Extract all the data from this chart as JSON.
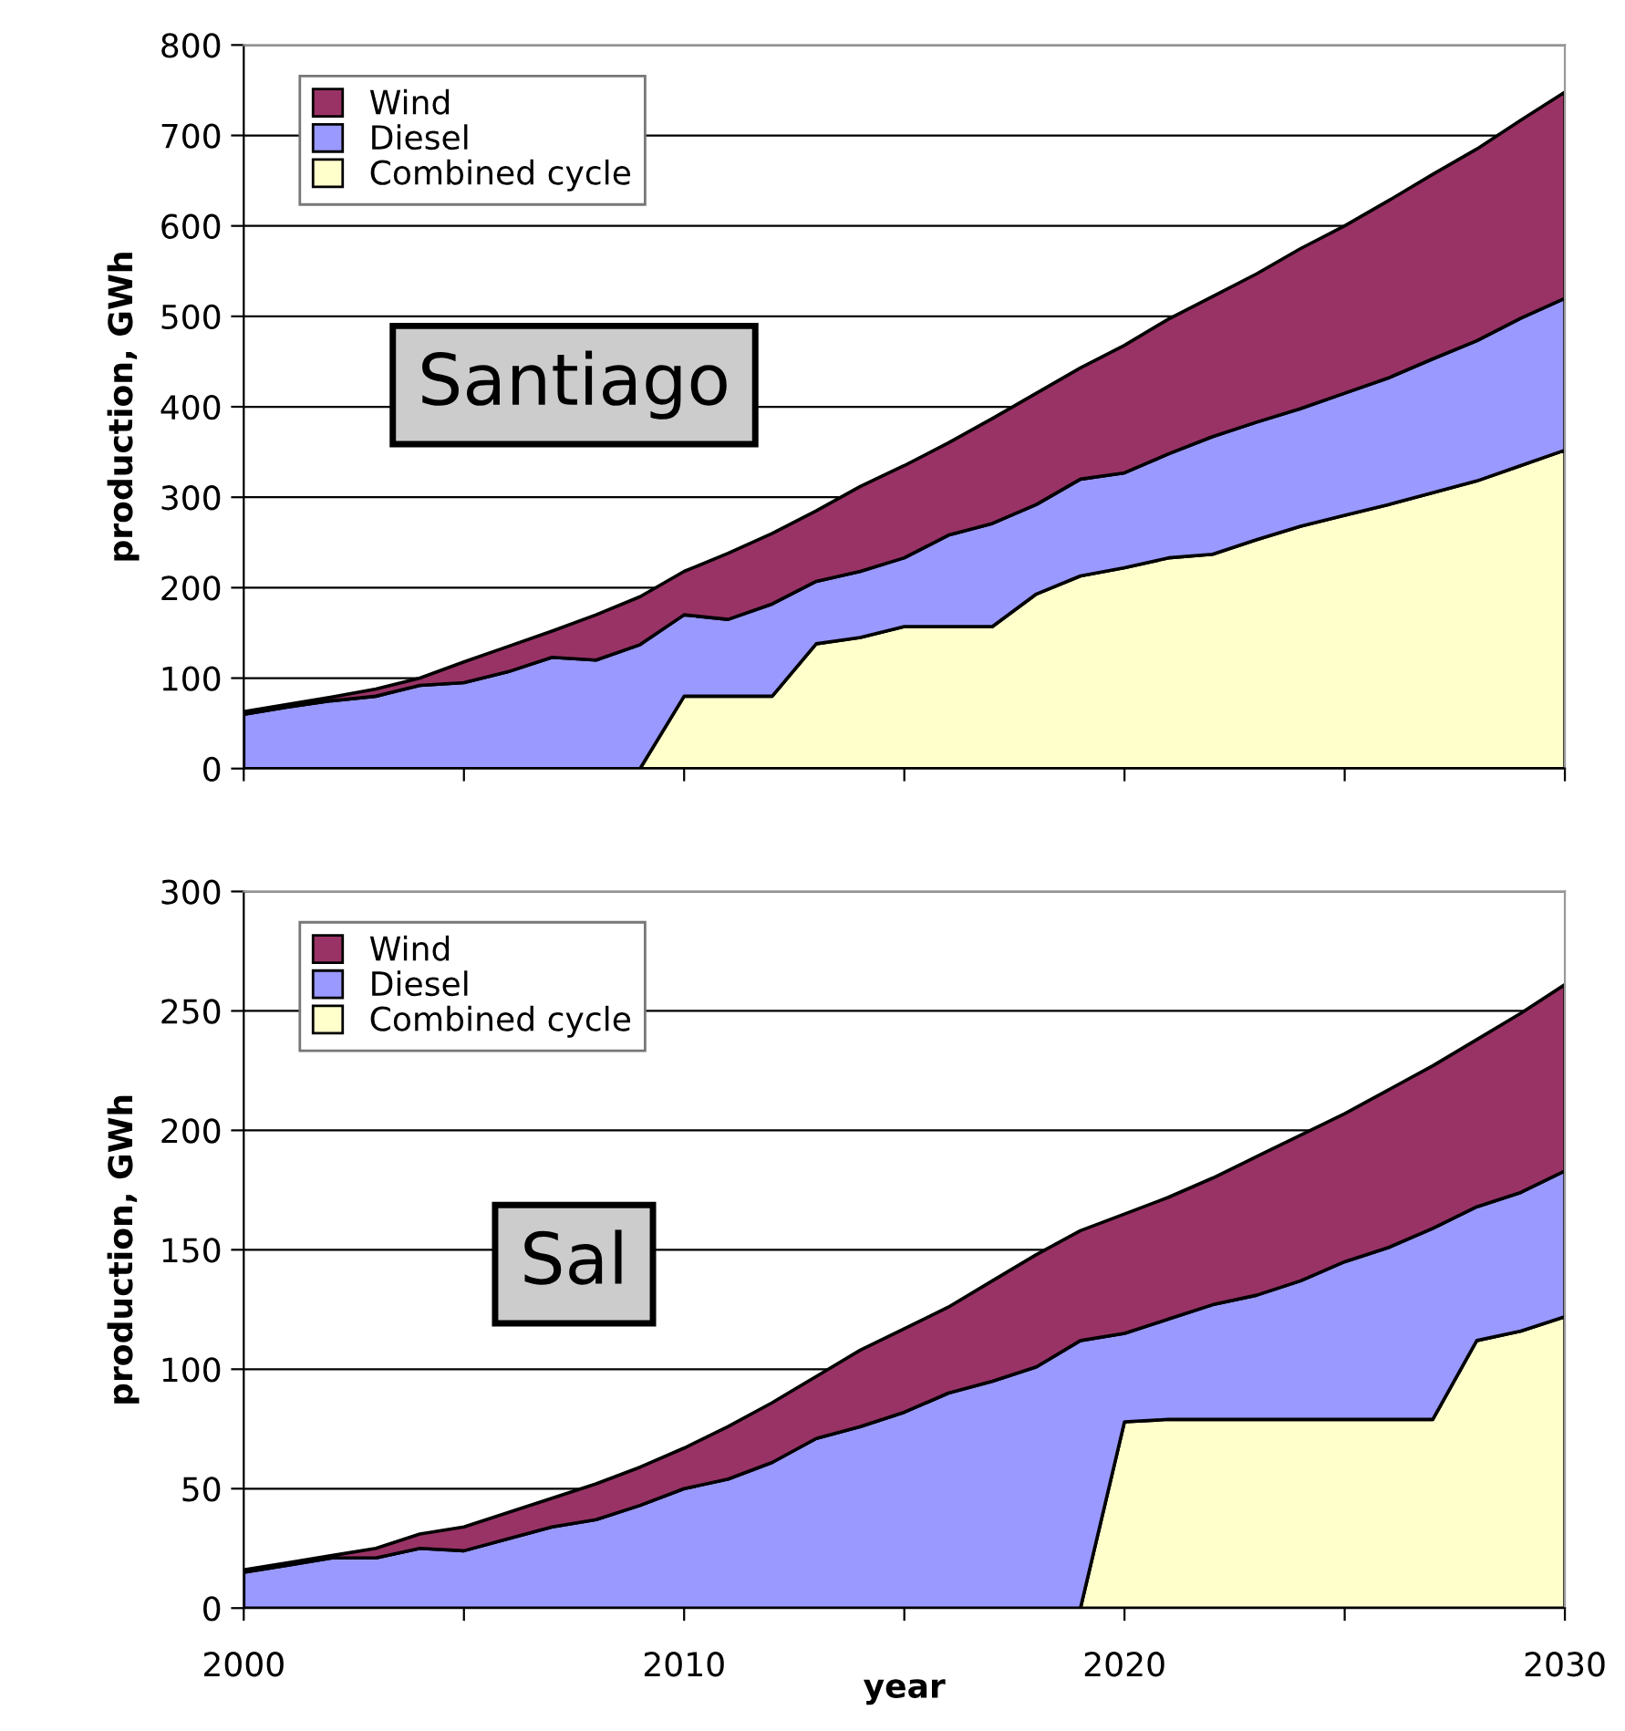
{
  "chart_data": [
    {
      "type": "area",
      "stacked": true,
      "ylabel": "production, GWh",
      "x": [
        2000,
        2001,
        2002,
        2003,
        2004,
        2005,
        2006,
        2007,
        2008,
        2009,
        2010,
        2011,
        2012,
        2013,
        2014,
        2015,
        2016,
        2017,
        2018,
        2019,
        2020,
        2021,
        2022,
        2023,
        2024,
        2025,
        2026,
        2027,
        2028,
        2029,
        2030
      ],
      "series": [
        {
          "name": "Combined cycle",
          "color": "#ffffcc",
          "values": [
            0,
            0,
            0,
            0,
            0,
            0,
            0,
            0,
            0,
            0,
            80,
            80,
            80,
            138,
            145,
            157,
            157,
            157,
            193,
            213,
            222,
            233,
            237,
            253,
            268,
            280,
            292,
            305,
            318,
            335,
            352
          ]
        },
        {
          "name": "Diesel",
          "color": "#9999ff",
          "values": [
            60,
            68,
            75,
            80,
            92,
            95,
            107,
            123,
            120,
            137,
            90,
            85,
            102,
            69,
            73,
            76,
            101,
            114,
            99,
            107,
            105,
            115,
            130,
            130,
            130,
            135,
            140,
            148,
            155,
            163,
            168
          ]
        },
        {
          "name": "Wind",
          "color": "#993366",
          "values": [
            3,
            3,
            4,
            8,
            8,
            23,
            28,
            29,
            50,
            53,
            48,
            73,
            78,
            78,
            94,
            102,
            102,
            116,
            123,
            123,
            141,
            149,
            155,
            164,
            177,
            185,
            196,
            204,
            212,
            219,
            228
          ]
        }
      ],
      "xlim": [
        2000,
        2030
      ],
      "xticks": [
        2000,
        {
          "value": 2005,
          "label": null
        },
        2010,
        {
          "value": 2015,
          "label": null
        },
        2020,
        {
          "value": 2025,
          "label": null
        },
        2030
      ],
      "ylim": [
        0,
        800
      ],
      "yticks": [
        0,
        100,
        200,
        300,
        400,
        500,
        600,
        700,
        800
      ],
      "grid": "y",
      "legend": "top left",
      "tick_labels": "y",
      "annotations": [
        "Santiago"
      ]
    },
    {
      "type": "area",
      "stacked": true,
      "ylabel": "production, GWh",
      "xlabel": "year",
      "x": [
        2000,
        2001,
        2002,
        2003,
        2004,
        2005,
        2006,
        2007,
        2008,
        2009,
        2010,
        2011,
        2012,
        2013,
        2014,
        2015,
        2016,
        2017,
        2018,
        2019,
        2020,
        2021,
        2022,
        2023,
        2024,
        2025,
        2026,
        2027,
        2028,
        2029,
        2030
      ],
      "series": [
        {
          "name": "Combined cycle",
          "color": "#ffffcc",
          "values": [
            0,
            0,
            0,
            0,
            0,
            0,
            0,
            0,
            0,
            0,
            0,
            0,
            0,
            0,
            0,
            0,
            0,
            0,
            0,
            0,
            78,
            79,
            79,
            79,
            79,
            79,
            79,
            79,
            112,
            116,
            122
          ]
        },
        {
          "name": "Diesel",
          "color": "#9999ff",
          "values": [
            15,
            18,
            21,
            21,
            25,
            24,
            29,
            34,
            37,
            43,
            50,
            54,
            61,
            71,
            76,
            82,
            90,
            95,
            101,
            112,
            37,
            42,
            48,
            52,
            58,
            66,
            72,
            80,
            56,
            58,
            61
          ]
        },
        {
          "name": "Wind",
          "color": "#993366",
          "values": [
            1,
            1,
            1,
            4,
            6,
            10,
            11,
            12,
            15,
            16,
            17,
            22,
            25,
            26,
            32,
            35,
            36,
            42,
            47,
            46,
            50,
            51,
            53,
            58,
            61,
            62,
            66,
            68,
            70,
            75,
            78
          ]
        }
      ],
      "xlim": [
        2000,
        2030
      ],
      "xticks": [
        2000,
        {
          "value": 2005,
          "label": null
        },
        2010,
        {
          "value": 2015,
          "label": null
        },
        2020,
        {
          "value": 2025,
          "label": null
        },
        2030
      ],
      "ylim": [
        0,
        300
      ],
      "yticks": [
        0,
        50,
        100,
        150,
        200,
        250,
        300
      ],
      "grid": "y",
      "legend": "top left",
      "annotations": [
        "Sal"
      ]
    }
  ]
}
